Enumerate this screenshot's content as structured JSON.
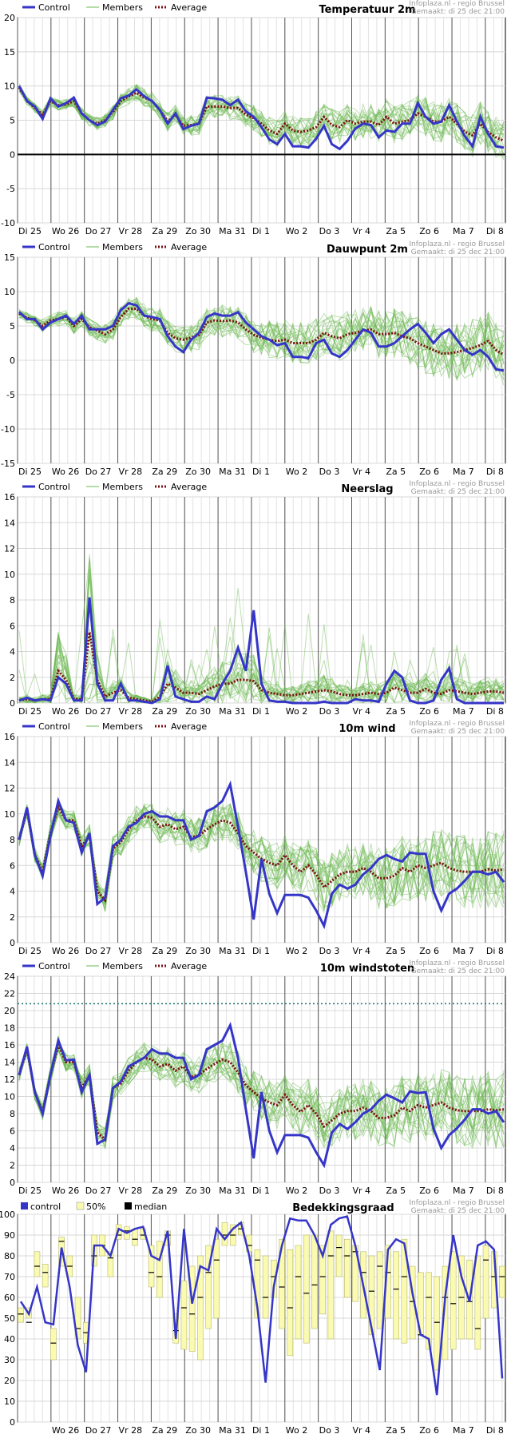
{
  "source": {
    "line1": "Infoplaza.nl - regio Brussel",
    "line2": "Gemaakt: di 25 dec 21:00"
  },
  "days": [
    "Di 25",
    "Wo 26",
    "Do 27",
    "Vr 28",
    "Za 29",
    "Zo 30",
    "Ma 31",
    "Di 1",
    "Wo 2",
    "Do 3",
    "Vr 4",
    "Za 5",
    "Zo 6",
    "Ma 7",
    "Di 8"
  ],
  "legend": {
    "control": "Control",
    "members": "Members",
    "average": "Average"
  },
  "legend_cloud": {
    "control": "control",
    "band": "50%",
    "median": "median"
  },
  "colors": {
    "control": "#3535c8",
    "members": "#6ab84f",
    "average": "#7a1010",
    "band": "#fafab0",
    "median": "#000000"
  },
  "chart_data": [
    {
      "type": "line",
      "title": "Temperatuur 2m",
      "ylim": [
        -10,
        20
      ],
      "yticks": [
        -10,
        -5,
        0,
        5,
        10,
        15,
        20
      ],
      "zero_line": true,
      "series": [
        {
          "name": "Control",
          "values": [
            10,
            7.8,
            7,
            5.2,
            8.2,
            7,
            7.5,
            8.3,
            6,
            5,
            4.3,
            4.8,
            6.5,
            8.2,
            8.6,
            9.5,
            8.5,
            7.8,
            6.5,
            4.5,
            6,
            3.7,
            4.2,
            4.5,
            8.3,
            8.2,
            8,
            7.2,
            8,
            6.3,
            5.5,
            4,
            2.2,
            1.5,
            3,
            1.2,
            1.2,
            1,
            2.3,
            4.2,
            1.5,
            0.8,
            2,
            3.8,
            4.5,
            4.3,
            2.5,
            3.5,
            3.3,
            4.5,
            4.5,
            7.5,
            5.5,
            4.5,
            4.8,
            7.2,
            4.8,
            2.7,
            1.2,
            5.5,
            3,
            1.2,
            1
          ]
        },
        {
          "name": "Average",
          "values": [
            9.8,
            7.8,
            6.8,
            5.8,
            7.8,
            7.2,
            7.3,
            7.8,
            6,
            5,
            4.5,
            5,
            6.2,
            7.8,
            8.5,
            9,
            8.3,
            7.8,
            6.5,
            4.8,
            5.8,
            4.2,
            4.3,
            4.5,
            7,
            7,
            7,
            6.8,
            6.8,
            5.8,
            5.3,
            4.5,
            3.5,
            3,
            4.5,
            3.5,
            3.3,
            3.5,
            4,
            5.5,
            4.3,
            4,
            5,
            4.5,
            4.8,
            4.8,
            4.3,
            5.5,
            4.5,
            4.8,
            5,
            6,
            5.5,
            4.8,
            4.8,
            5.5,
            4.5,
            3.3,
            2.8,
            4.5,
            3.3,
            2.5,
            2
          ]
        }
      ]
    },
    {
      "type": "line",
      "title": "Dauwpunt 2m",
      "ylim": [
        -15,
        15
      ],
      "yticks": [
        -15,
        -10,
        -5,
        0,
        5,
        10,
        15
      ],
      "zero_line": false,
      "series": [
        {
          "name": "Control",
          "values": [
            7,
            6,
            6,
            4.5,
            5.5,
            6,
            6.5,
            5.3,
            6.5,
            4.5,
            4.5,
            4.5,
            5,
            7.3,
            8.3,
            8,
            6.5,
            6.3,
            6,
            3.5,
            2,
            1.2,
            3,
            4,
            6.3,
            6.8,
            6.5,
            6.5,
            7,
            5.5,
            4.5,
            3.5,
            3,
            2.2,
            2.5,
            0.5,
            0.5,
            0.3,
            2.5,
            3,
            1,
            0.5,
            1.5,
            3,
            4.5,
            4,
            2,
            2,
            2.5,
            3.5,
            4.5,
            5.3,
            4,
            2.5,
            3.8,
            4.5,
            3,
            1.5,
            0.8,
            1.5,
            0.5,
            -1.3,
            -1.5
          ]
        },
        {
          "name": "Average",
          "values": [
            6.8,
            6.2,
            5.8,
            5,
            5.8,
            6,
            6.3,
            5,
            6,
            4.8,
            4.3,
            3.8,
            4.5,
            6.3,
            7.5,
            7.5,
            6.5,
            6,
            5.8,
            4,
            3.2,
            3,
            3.3,
            3.7,
            5.5,
            5.8,
            5.7,
            5.8,
            5.5,
            4.5,
            3.7,
            3.3,
            3,
            2.8,
            3,
            2.5,
            2.5,
            2.5,
            3,
            4,
            3.5,
            3.2,
            3.8,
            4,
            4.3,
            4.5,
            3.8,
            3.8,
            4,
            3.5,
            3.2,
            2.5,
            2,
            1.5,
            1,
            1,
            1.2,
            1.5,
            1.8,
            2.2,
            2.8,
            1.5,
            0.8
          ]
        }
      ]
    },
    {
      "type": "line",
      "title": "Neerslag",
      "ylim": [
        0,
        16
      ],
      "yticks": [
        0,
        2,
        4,
        6,
        8,
        10,
        12,
        14,
        16
      ],
      "zero_line": false,
      "series": [
        {
          "name": "Control",
          "values": [
            0.2,
            0.4,
            0.2,
            0.3,
            0.2,
            2,
            1.5,
            0.2,
            0.2,
            8.2,
            1.5,
            0.2,
            0.2,
            1.5,
            0.2,
            0.2,
            0.1,
            0,
            0.3,
            2.9,
            0.5,
            0.3,
            0.1,
            0.1,
            0.5,
            0.3,
            1.5,
            2.5,
            4.3,
            2.5,
            7.2,
            1.5,
            0.2,
            0.1,
            0.1,
            0,
            0,
            0,
            0,
            0.1,
            0,
            0,
            0,
            0.3,
            0.2,
            0.2,
            0.1,
            1.5,
            2.5,
            2,
            0.2,
            0,
            0,
            0.2,
            1.8,
            2.7,
            0.3,
            0,
            0,
            0,
            0,
            0,
            0
          ]
        },
        {
          "name": "Average",
          "values": [
            0.2,
            0.3,
            0.2,
            0.3,
            0.3,
            2.5,
            1.8,
            0.3,
            0.3,
            5.5,
            1.8,
            0.5,
            0.8,
            1,
            0.4,
            0.3,
            0.2,
            0.1,
            0.5,
            1.5,
            1.2,
            0.8,
            0.8,
            0.7,
            1,
            1.3,
            1.5,
            1.5,
            1.8,
            1.8,
            1.7,
            1,
            0.8,
            0.7,
            0.6,
            0.6,
            0.7,
            0.8,
            0.9,
            1,
            0.9,
            0.7,
            0.6,
            0.6,
            0.7,
            0.8,
            0.7,
            0.8,
            1.2,
            1,
            0.8,
            0.8,
            1.1,
            0.8,
            0.7,
            1,
            0.9,
            0.8,
            0.7,
            0.8,
            0.9,
            0.9,
            0.8
          ]
        }
      ]
    },
    {
      "type": "line",
      "title": "10m wind",
      "ylim": [
        0,
        16
      ],
      "yticks": [
        0,
        2,
        4,
        6,
        8,
        10,
        12,
        14,
        16
      ],
      "zero_line": false,
      "series": [
        {
          "name": "Control",
          "values": [
            8,
            10.5,
            6.8,
            5.2,
            8.3,
            11,
            9.5,
            9.3,
            7,
            8.5,
            3,
            3.5,
            7.5,
            8,
            9,
            9.3,
            10,
            10.2,
            9.8,
            9.8,
            9.5,
            9.5,
            8,
            8.3,
            10.2,
            10.5,
            11,
            12.3,
            9,
            5.5,
            1.8,
            6.5,
            3.8,
            2.3,
            3.7,
            3.7,
            3.7,
            3.5,
            2.5,
            1.3,
            3.8,
            4.5,
            4.2,
            4.5,
            5.3,
            5.8,
            6.5,
            6.8,
            6.5,
            6.3,
            7,
            6.9,
            6.9,
            4,
            2.5,
            3.8,
            4.2,
            4.8,
            5.5,
            5.5,
            5.3,
            5.5,
            4.7
          ]
        },
        {
          "name": "Average",
          "values": [
            8,
            10.3,
            6.8,
            5.5,
            8.5,
            10.5,
            9.5,
            9.5,
            7.5,
            8.3,
            4,
            3.3,
            7.3,
            7.8,
            8.8,
            9.5,
            9.8,
            9.7,
            9,
            9.2,
            8.8,
            9,
            8.2,
            8.3,
            8.8,
            9.2,
            9.5,
            9.3,
            8.5,
            7.5,
            7,
            6.5,
            6.2,
            6,
            6.8,
            6,
            5.5,
            6,
            5.3,
            4.3,
            4.8,
            5.3,
            5.5,
            5.5,
            5.8,
            5.5,
            5,
            5,
            5.2,
            5.8,
            5.5,
            6,
            5.8,
            6,
            6.2,
            5.8,
            5.6,
            5.5,
            5.5,
            5.5,
            5.7,
            5.6,
            5.7
          ]
        }
      ]
    },
    {
      "type": "line",
      "title": "10m windstoten",
      "ylim": [
        0,
        24
      ],
      "yticks": [
        0,
        2,
        4,
        6,
        8,
        10,
        12,
        14,
        16,
        18,
        20,
        22,
        24
      ],
      "zero_line": false,
      "threshold": 20.8,
      "series": [
        {
          "name": "Control",
          "values": [
            12.5,
            15.8,
            10.5,
            8,
            12.5,
            16.5,
            14.2,
            14.3,
            10.5,
            12.5,
            4.5,
            5,
            11,
            11.7,
            13.5,
            14,
            14.5,
            15.5,
            15,
            15,
            14.5,
            14.5,
            12,
            12.5,
            15.5,
            16,
            16.5,
            18.3,
            14.5,
            8.5,
            2.8,
            10.5,
            6,
            3.5,
            5.5,
            5.5,
            5.5,
            5.2,
            3.5,
            2,
            5.8,
            6.8,
            6.2,
            7,
            8,
            8.5,
            9.5,
            10.2,
            9.8,
            9.3,
            10.6,
            10.4,
            10.5,
            6.3,
            4,
            5.5,
            6.3,
            7.3,
            8.5,
            8.5,
            8,
            8.3,
            7
          ]
        },
        {
          "name": "Average",
          "values": [
            12.5,
            15.5,
            10.5,
            8.2,
            12.5,
            16,
            14,
            14,
            11,
            12.5,
            5.8,
            5,
            11,
            11.5,
            13,
            14,
            14.5,
            14.3,
            13.5,
            13.8,
            13,
            13.5,
            12.3,
            12.5,
            13.2,
            13.8,
            14.3,
            14,
            12.8,
            11.3,
            10.5,
            9.8,
            9.3,
            9,
            10.2,
            9,
            8.2,
            9,
            8,
            6.5,
            7.2,
            8,
            8.3,
            8.3,
            8.7,
            8.3,
            7.5,
            7.5,
            7.8,
            8.7,
            8.3,
            9,
            8.7,
            9,
            9.3,
            8.7,
            8.4,
            8.3,
            8.3,
            8.3,
            8.5,
            8.4,
            8.5
          ]
        }
      ]
    },
    {
      "type": "bar",
      "title": "Bedekkingsgraad",
      "ylim": [
        0,
        100
      ],
      "yticks": [
        0,
        10,
        20,
        30,
        40,
        50,
        60,
        70,
        80,
        90,
        100
      ],
      "series": [
        {
          "name": "control",
          "values": [
            58,
            52,
            65,
            48,
            47,
            84,
            65,
            37,
            24,
            85,
            85,
            80,
            93,
            91,
            93,
            94,
            80,
            78,
            92,
            40,
            93,
            57,
            75,
            73,
            93,
            88,
            93,
            96,
            80,
            55,
            19,
            65,
            85,
            98,
            97,
            97,
            90,
            80,
            95,
            98,
            99,
            85,
            65,
            45,
            25,
            83,
            88,
            86,
            62,
            42,
            40,
            13,
            60,
            90,
            70,
            58,
            85,
            87,
            83,
            21
          ]
        }
      ],
      "band_low": [
        48,
        50,
        70,
        65,
        30,
        75,
        70,
        40,
        38,
        75,
        80,
        70,
        88,
        88,
        85,
        88,
        65,
        60,
        85,
        38,
        35,
        34,
        30,
        45,
        50,
        85,
        85,
        90,
        82,
        50,
        50,
        60,
        45,
        32,
        40,
        38,
        45,
        52,
        40,
        70,
        60,
        58,
        50,
        42,
        45,
        50,
        40,
        38,
        40,
        42,
        35,
        25,
        30,
        35,
        40,
        40,
        35,
        50,
        55,
        60
      ],
      "band_high": [
        55,
        55,
        82,
        76,
        45,
        89,
        80,
        60,
        48,
        90,
        90,
        82,
        95,
        94,
        93,
        93,
        85,
        87,
        92,
        52,
        68,
        75,
        80,
        85,
        88,
        96,
        95,
        96,
        90,
        83,
        80,
        78,
        88,
        83,
        85,
        90,
        90,
        85,
        92,
        90,
        88,
        85,
        82,
        80,
        82,
        85,
        82,
        88,
        75,
        72,
        72,
        70,
        75,
        82,
        80,
        78,
        80,
        85,
        82,
        75
      ],
      "median": [
        52,
        48,
        75,
        72,
        38,
        87,
        75,
        45,
        43,
        80,
        85,
        79,
        90,
        92,
        88,
        90,
        72,
        70,
        90,
        44,
        55,
        52,
        60,
        72,
        78,
        90,
        90,
        93,
        85,
        78,
        60,
        70,
        65,
        55,
        70,
        62,
        66,
        70,
        80,
        84,
        80,
        82,
        72,
        63,
        75,
        72,
        64,
        70,
        58,
        42,
        60,
        48,
        60,
        57,
        60,
        58,
        45,
        78,
        70,
        70
      ]
    }
  ]
}
